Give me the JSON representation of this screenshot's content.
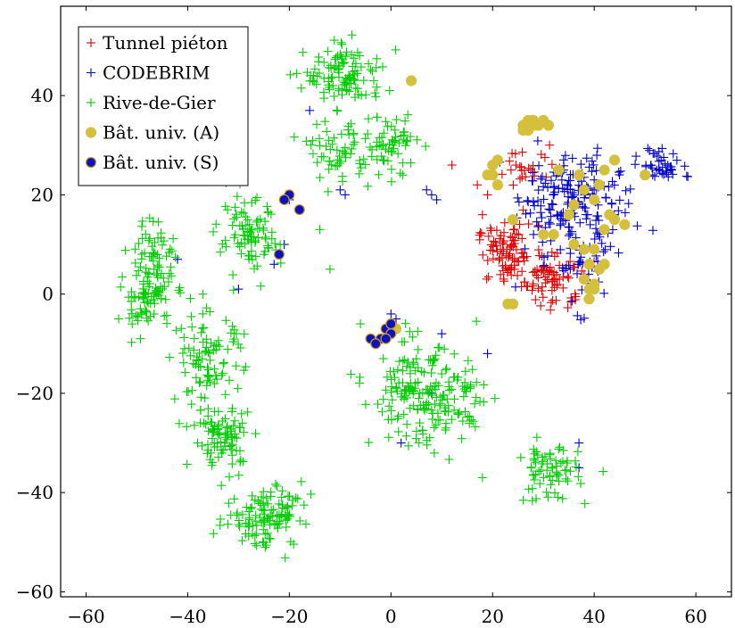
{
  "chart_data": {
    "type": "scatter",
    "title": "",
    "xlabel": "",
    "ylabel": "",
    "xlim": [
      -65,
      67
    ],
    "ylim": [
      -61,
      58
    ],
    "xticks": [
      -60,
      -40,
      -20,
      0,
      20,
      40,
      60
    ],
    "yticks": [
      -60,
      -40,
      -20,
      0,
      20,
      40
    ],
    "xtick_labels": [
      "−60",
      "−40",
      "−20",
      "0",
      "20",
      "40",
      "60"
    ],
    "ytick_labels": [
      "−60",
      "−40",
      "−20",
      "0",
      "20",
      "40"
    ],
    "grid": false,
    "legend_position": "top-left",
    "series": [
      {
        "name": "Tunnel piéton",
        "marker": "plus",
        "color": "#e00000",
        "clusters": [
          {
            "cx": 23,
            "cy": 8,
            "sx": 3,
            "sy": 3,
            "n": 90
          },
          {
            "cx": 32,
            "cy": 3,
            "sx": 3,
            "sy": 3,
            "n": 70
          },
          {
            "cx": 27,
            "cy": 26,
            "sx": 3,
            "sy": 2,
            "n": 25
          }
        ],
        "points": [
          [
            18,
            16
          ],
          [
            12,
            26
          ],
          [
            17,
            22
          ],
          [
            19,
            20
          ],
          [
            38,
            4
          ]
        ]
      },
      {
        "name": "CODEBRIM",
        "marker": "plus",
        "color": "#0000cc",
        "clusters": [
          {
            "cx": 35,
            "cy": 20,
            "sx": 5,
            "sy": 4,
            "n": 160
          },
          {
            "cx": 53,
            "cy": 26,
            "sx": 2,
            "sy": 2,
            "n": 40
          },
          {
            "cx": 37,
            "cy": 8,
            "sx": 5,
            "sy": 5,
            "n": 60
          }
        ],
        "points": [
          [
            -21,
            19
          ],
          [
            -20,
            19
          ],
          [
            -21,
            10
          ],
          [
            -30,
            1
          ],
          [
            -16,
            37
          ],
          [
            -9,
            20
          ],
          [
            -10,
            21
          ],
          [
            0,
            -4
          ],
          [
            1,
            -5
          ],
          [
            8,
            20
          ],
          [
            9,
            19
          ],
          [
            7,
            21
          ],
          [
            10,
            -8
          ],
          [
            19,
            -12
          ],
          [
            37,
            -30
          ],
          [
            37,
            -35
          ],
          [
            -23,
            6
          ],
          [
            -42,
            7
          ],
          [
            8,
            -20
          ],
          [
            2,
            -30
          ]
        ]
      },
      {
        "name": "Rive-de-Gier",
        "marker": "plus",
        "color": "#00cc00",
        "clusters": [
          {
            "cx": -48,
            "cy": 0,
            "sx": 2.5,
            "sy": 4,
            "n": 90
          },
          {
            "cx": -46,
            "cy": 9,
            "sx": 2,
            "sy": 3,
            "n": 40
          },
          {
            "cx": -28,
            "cy": 11,
            "sx": 3,
            "sy": 4,
            "n": 90
          },
          {
            "cx": -36,
            "cy": -14,
            "sx": 3.5,
            "sy": 5,
            "n": 100
          },
          {
            "cx": -33,
            "cy": -29,
            "sx": 3,
            "sy": 3,
            "n": 80
          },
          {
            "cx": -26,
            "cy": -45,
            "sx": 3.5,
            "sy": 3,
            "n": 80
          },
          {
            "cx": -21,
            "cy": -43,
            "sx": 2.5,
            "sy": 3,
            "n": 40
          },
          {
            "cx": -9,
            "cy": 44,
            "sx": 4,
            "sy": 3,
            "n": 110
          },
          {
            "cx": -10,
            "cy": 29,
            "sx": 3,
            "sy": 3,
            "n": 60
          },
          {
            "cx": 0,
            "cy": 30,
            "sx": 2.5,
            "sy": 3,
            "n": 60
          },
          {
            "cx": 4,
            "cy": -20,
            "sx": 4,
            "sy": 5,
            "n": 120
          },
          {
            "cx": 12,
            "cy": -22,
            "sx": 4,
            "sy": 5,
            "n": 80
          },
          {
            "cx": 31,
            "cy": -36,
            "sx": 3,
            "sy": 3,
            "n": 70
          }
        ],
        "points": [
          [
            -37,
            0
          ],
          [
            -14,
            13
          ],
          [
            -6,
            -6
          ],
          [
            18,
            -37
          ],
          [
            -12,
            5
          ]
        ]
      },
      {
        "name": "Bât. univ. (A)",
        "marker": "circle",
        "color": "#d4c03c",
        "edge": "#d4c03c",
        "points": [
          [
            27,
            35
          ],
          [
            26,
            34
          ],
          [
            28,
            35
          ],
          [
            26,
            33
          ],
          [
            29,
            34
          ],
          [
            27,
            33
          ],
          [
            28,
            34
          ],
          [
            30,
            35
          ],
          [
            31,
            34
          ],
          [
            4,
            43
          ],
          [
            20,
            26
          ],
          [
            21,
            27
          ],
          [
            20,
            24
          ],
          [
            19,
            24
          ],
          [
            21,
            22
          ],
          [
            24,
            15
          ],
          [
            30,
            12
          ],
          [
            32,
            12
          ],
          [
            35,
            16
          ],
          [
            36,
            18
          ],
          [
            37,
            24
          ],
          [
            38,
            21
          ],
          [
            40,
            19
          ],
          [
            41,
            22
          ],
          [
            42,
            25
          ],
          [
            43,
            16
          ],
          [
            42,
            13
          ],
          [
            44,
            15
          ],
          [
            46,
            14
          ],
          [
            50,
            24
          ],
          [
            33,
            25
          ],
          [
            44,
            27
          ],
          [
            36,
            10
          ],
          [
            38,
            9
          ],
          [
            40,
            9
          ],
          [
            42,
            6
          ],
          [
            38,
            3
          ],
          [
            39,
            1
          ],
          [
            40,
            2
          ],
          [
            39,
            -1
          ],
          [
            40,
            1
          ],
          [
            23,
            -2
          ],
          [
            24,
            -2
          ],
          [
            41,
            5
          ],
          [
            39,
            6
          ],
          [
            1,
            -7
          ]
        ]
      },
      {
        "name": "Bât. univ. (S)",
        "marker": "circle",
        "color": "#1010c0",
        "edge": "#c8a020",
        "points": [
          [
            -20,
            20
          ],
          [
            -21,
            19
          ],
          [
            -18,
            17
          ],
          [
            -22,
            8
          ],
          [
            -4,
            -9
          ],
          [
            -2,
            -9
          ],
          [
            -1,
            -7
          ],
          [
            0,
            -6
          ],
          [
            0,
            -8
          ],
          [
            -1,
            -9
          ],
          [
            -3,
            -10
          ]
        ]
      }
    ]
  }
}
